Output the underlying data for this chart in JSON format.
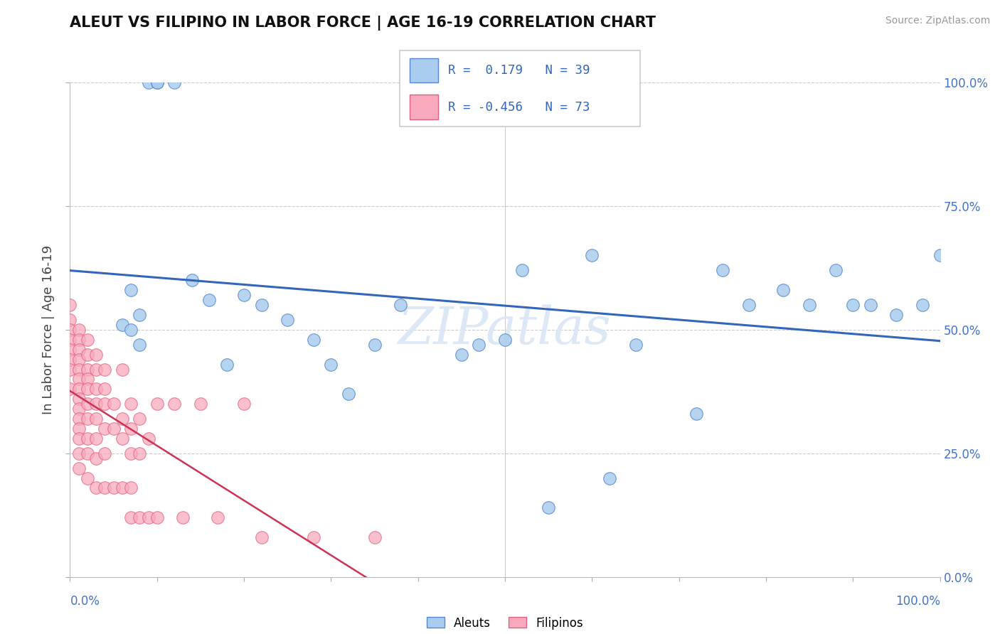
{
  "title": "ALEUT VS FILIPINO IN LABOR FORCE | AGE 16-19 CORRELATION CHART",
  "source_text": "Source: ZipAtlas.com",
  "ylabel": "In Labor Force | Age 16-19",
  "aleut_R": 0.179,
  "aleut_N": 39,
  "filipino_R": -0.456,
  "filipino_N": 73,
  "aleut_color": "#aaccee",
  "aleut_edge": "#5588cc",
  "filipino_color": "#f8aabc",
  "filipino_edge": "#e06080",
  "trend_aleut_color": "#3366bb",
  "trend_filipino_solid": "#cc3355",
  "trend_filipino_dashed": "#f0a0b0",
  "watermark_color": "#dce8f5",
  "aleut_x": [
    0.06,
    0.07,
    0.07,
    0.08,
    0.08,
    0.09,
    0.1,
    0.1,
    0.12,
    0.14,
    0.16,
    0.18,
    0.2,
    0.22,
    0.25,
    0.28,
    0.3,
    0.32,
    0.35,
    0.38,
    0.45,
    0.47,
    0.5,
    0.52,
    0.55,
    0.6,
    0.62,
    0.65,
    0.72,
    0.75,
    0.78,
    0.82,
    0.85,
    0.88,
    0.9,
    0.92,
    0.95,
    0.98,
    1.0
  ],
  "aleut_y": [
    0.51,
    0.58,
    0.5,
    0.53,
    0.47,
    1.0,
    1.0,
    1.0,
    1.0,
    0.6,
    0.56,
    0.43,
    0.57,
    0.55,
    0.52,
    0.48,
    0.43,
    0.37,
    0.47,
    0.55,
    0.45,
    0.47,
    0.48,
    0.62,
    0.14,
    0.65,
    0.2,
    0.47,
    0.33,
    0.62,
    0.55,
    0.58,
    0.55,
    0.62,
    0.55,
    0.55,
    0.53,
    0.55,
    0.65
  ],
  "filipino_x": [
    0.0,
    0.0,
    0.0,
    0.0,
    0.0,
    0.0,
    0.0,
    0.0,
    0.01,
    0.01,
    0.01,
    0.01,
    0.01,
    0.01,
    0.01,
    0.01,
    0.01,
    0.01,
    0.01,
    0.01,
    0.01,
    0.01,
    0.02,
    0.02,
    0.02,
    0.02,
    0.02,
    0.02,
    0.02,
    0.02,
    0.02,
    0.02,
    0.03,
    0.03,
    0.03,
    0.03,
    0.03,
    0.03,
    0.03,
    0.03,
    0.04,
    0.04,
    0.04,
    0.04,
    0.04,
    0.04,
    0.05,
    0.05,
    0.05,
    0.06,
    0.06,
    0.06,
    0.06,
    0.07,
    0.07,
    0.07,
    0.07,
    0.07,
    0.08,
    0.08,
    0.08,
    0.09,
    0.09,
    0.1,
    0.1,
    0.12,
    0.13,
    0.15,
    0.17,
    0.2,
    0.22,
    0.28,
    0.35
  ],
  "filipino_y": [
    0.55,
    0.52,
    0.5,
    0.48,
    0.46,
    0.44,
    0.42,
    0.38,
    0.5,
    0.48,
    0.46,
    0.44,
    0.42,
    0.4,
    0.38,
    0.36,
    0.34,
    0.32,
    0.3,
    0.28,
    0.25,
    0.22,
    0.48,
    0.45,
    0.42,
    0.4,
    0.38,
    0.35,
    0.32,
    0.28,
    0.25,
    0.2,
    0.45,
    0.42,
    0.38,
    0.35,
    0.32,
    0.28,
    0.24,
    0.18,
    0.42,
    0.38,
    0.35,
    0.3,
    0.25,
    0.18,
    0.35,
    0.3,
    0.18,
    0.32,
    0.28,
    0.18,
    0.42,
    0.35,
    0.3,
    0.25,
    0.18,
    0.12,
    0.32,
    0.25,
    0.12,
    0.28,
    0.12,
    0.35,
    0.12,
    0.35,
    0.12,
    0.35,
    0.12,
    0.35,
    0.08,
    0.08,
    0.08
  ],
  "xlim": [
    0.0,
    1.0
  ],
  "ylim": [
    0.0,
    1.0
  ],
  "ytick_vals": [
    0.0,
    0.25,
    0.5,
    0.75,
    1.0
  ],
  "ytick_labels": [
    "0.0%",
    "25.0%",
    "50.0%",
    "75.0%",
    "100.0%"
  ]
}
